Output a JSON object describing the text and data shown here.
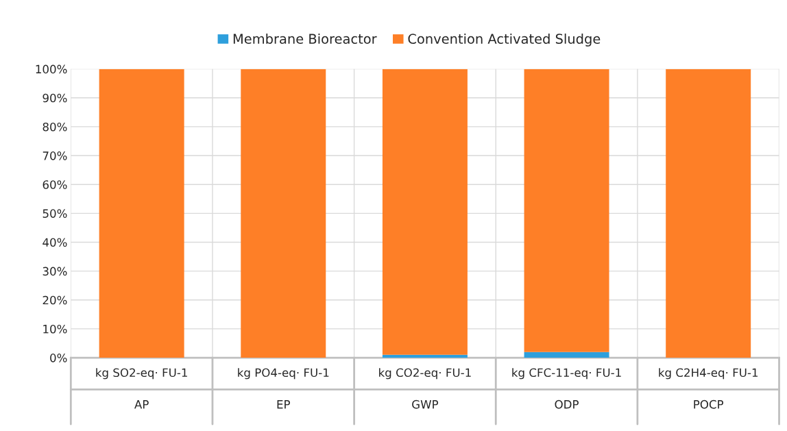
{
  "chart_data": {
    "type": "bar",
    "stacked": true,
    "categories": [
      "kg SO2-eq· FU-1\nAP",
      "kg PO4-eq· FU-1\nEP",
      "kg CO2-eq· FU-1\nGWP",
      "kg CFC-11-eq· FU-1\nODP",
      "kg C2H4-eq· FU-1\nPOCP"
    ],
    "series": [
      {
        "name": "Membrane Bioreactor",
        "color": "#2e9fdc",
        "values": [
          0,
          0,
          1,
          2,
          0
        ]
      },
      {
        "name": "Convention Activated Sludge",
        "color": "#fe7f27",
        "values": [
          100,
          100,
          99,
          98,
          100
        ]
      }
    ],
    "ylim": [
      0,
      100
    ],
    "yticks": [
      {
        "value": 0,
        "label": "0%"
      },
      {
        "value": 10,
        "label": "10%"
      },
      {
        "value": 20,
        "label": "20%"
      },
      {
        "value": 30,
        "label": "30%"
      },
      {
        "value": 40,
        "label": "40%"
      },
      {
        "value": 50,
        "label": "50%"
      },
      {
        "value": 60,
        "label": "60%"
      },
      {
        "value": 70,
        "label": "70%"
      },
      {
        "value": 80,
        "label": "80%"
      },
      {
        "value": 90,
        "label": "90%"
      },
      {
        "value": 100,
        "label": "100%"
      }
    ],
    "grid": "y",
    "legend": "top"
  }
}
